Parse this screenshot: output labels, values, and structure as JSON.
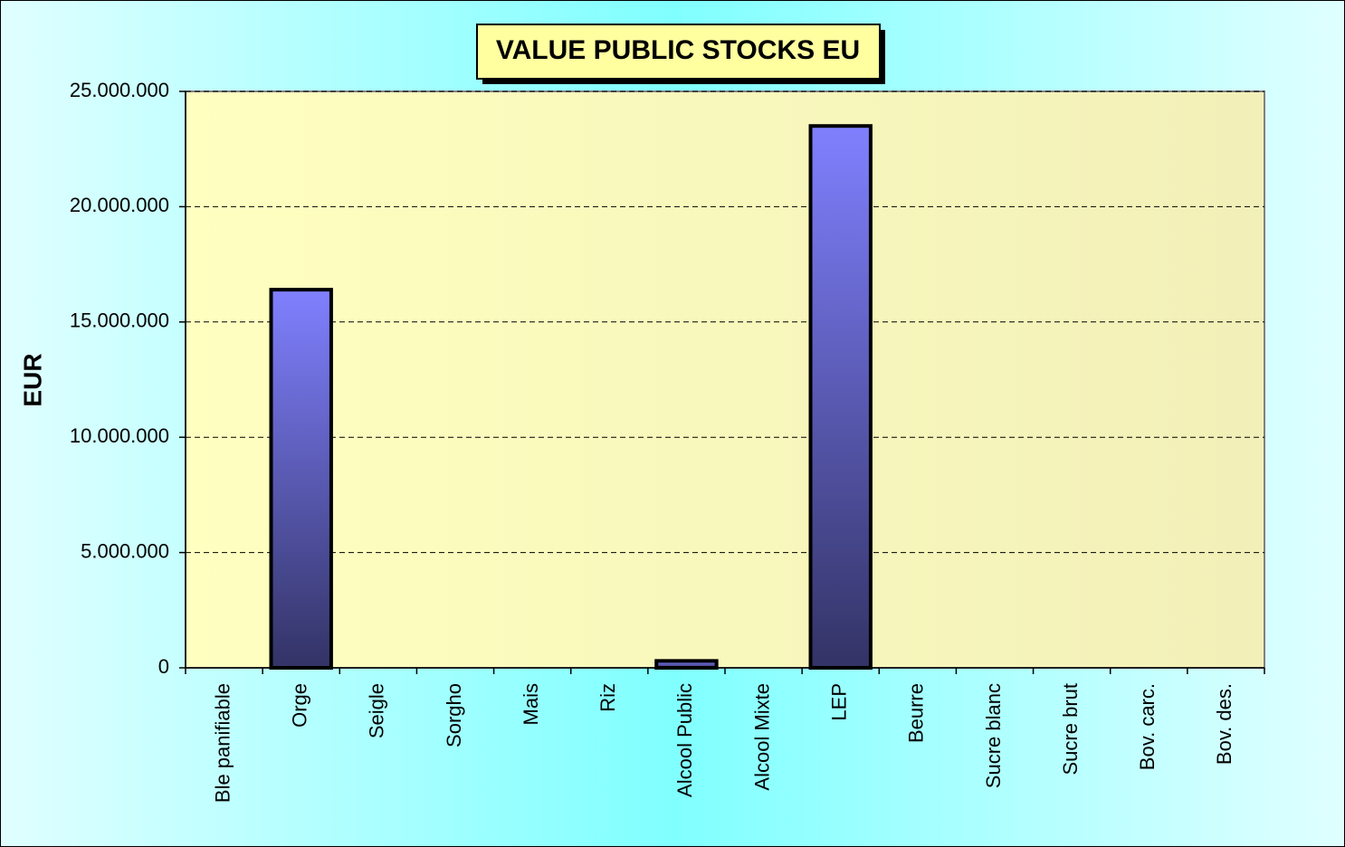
{
  "chart_data": {
    "type": "bar",
    "title": "VALUE PUBLIC STOCKS EU",
    "y_label": "EUR",
    "categories": [
      "Ble panifiable",
      "Orge",
      "Seigle",
      "Sorgho",
      "Mais",
      "Riz",
      "Alcool Public",
      "Alcool Mixte",
      "LEP",
      "Beurre",
      "Sucre blanc",
      "Sucre brut",
      "Bov. carc.",
      "Bov. des."
    ],
    "values": [
      0,
      16400000,
      0,
      0,
      0,
      0,
      300000,
      0,
      23500000,
      0,
      0,
      0,
      0,
      0
    ],
    "color": "#8080ff",
    "ylim": [
      0,
      25000000
    ],
    "yticks": [
      0,
      {
        "value": 5000000,
        "label": "5.000.000"
      },
      {
        "value": 10000000,
        "label": "10.000.000"
      },
      {
        "value": 15000000,
        "label": "15.000.000"
      },
      {
        "value": 20000000,
        "label": "20.000.000"
      },
      {
        "value": 25000000,
        "label": "25.000.000"
      }
    ],
    "grid": true
  }
}
